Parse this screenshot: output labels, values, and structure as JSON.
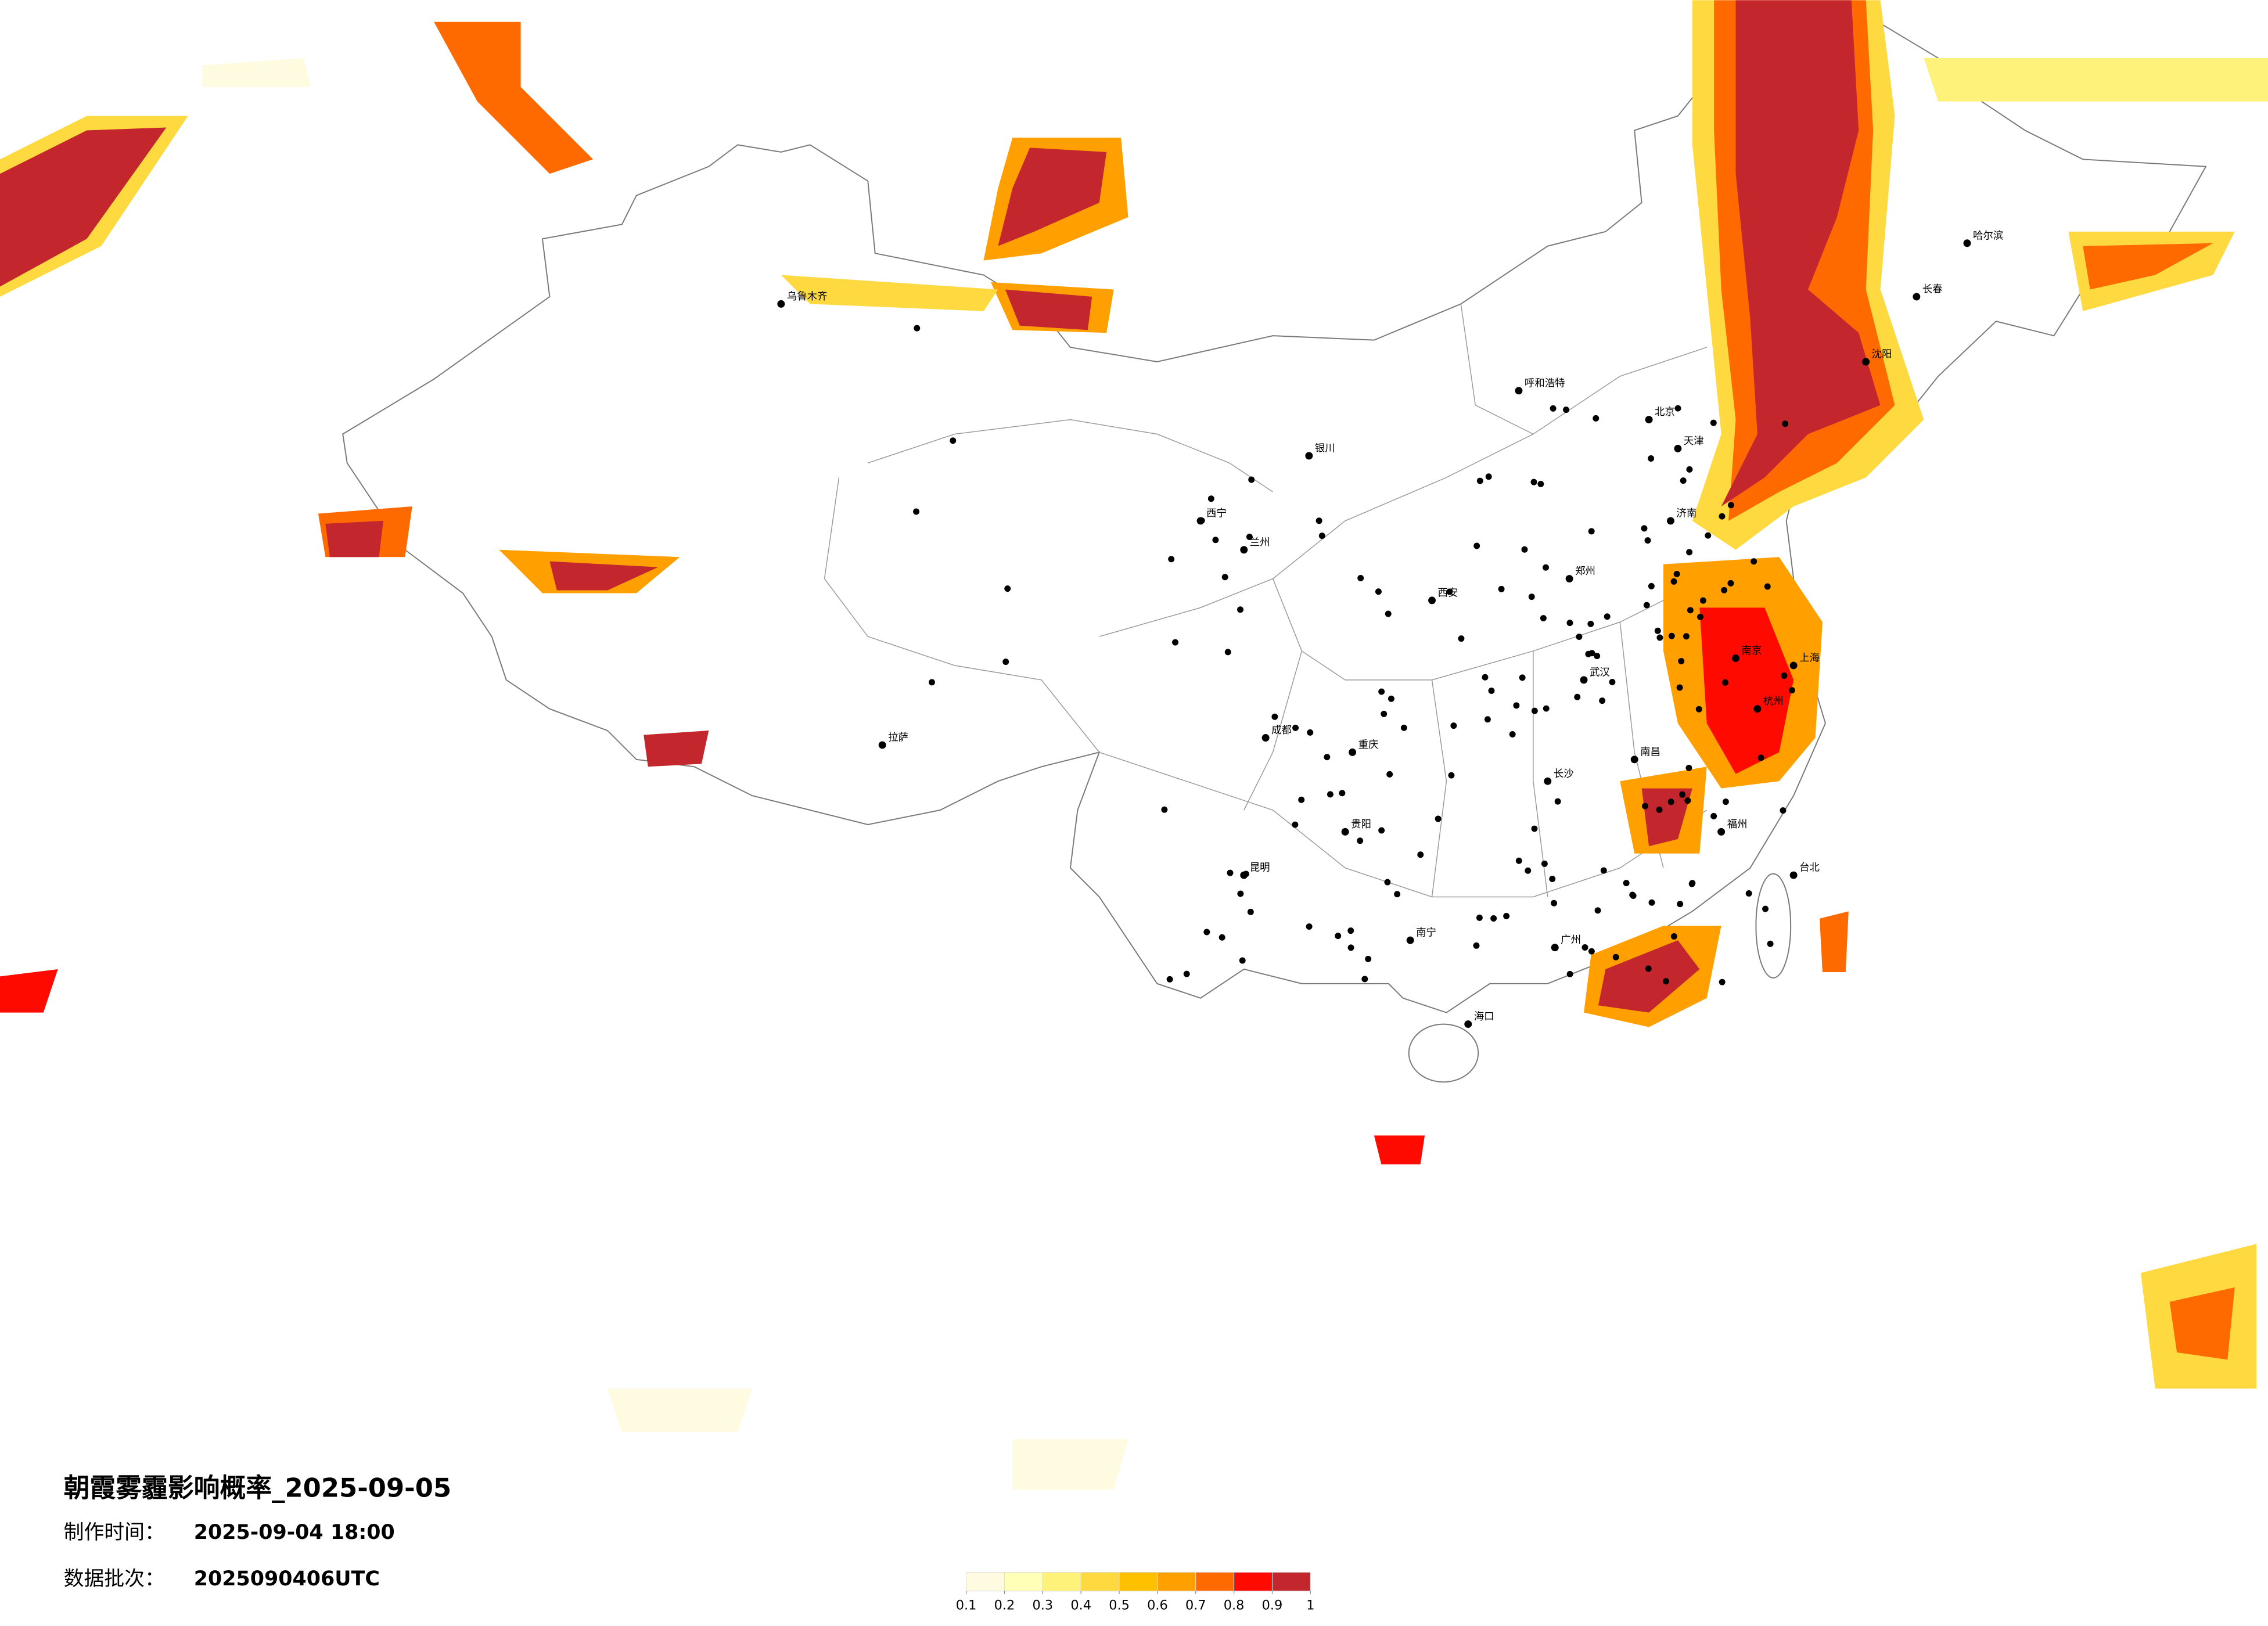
{
  "map": {
    "title": "朝霞雾霾影响概率_2025-09-05",
    "production_time_label": "制作时间：",
    "production_time": "2025-09-04 18:00",
    "batch_label": "数据批次：",
    "batch": "2025090406UTC",
    "legend": {
      "ticks": [
        0.1,
        0.2,
        0.3,
        0.4,
        0.5,
        0.6,
        0.7,
        0.8,
        0.9,
        1
      ],
      "colors": [
        "#fffbe0",
        "#ffffb8",
        "#fff27a",
        "#ffd940",
        "#ffc000",
        "#ffa000",
        "#ff6a00",
        "#ff0a00",
        "#c4262e"
      ]
    },
    "cities": [
      "哈尔滨",
      "长春",
      "沈阳",
      "北京",
      "天津",
      "济南",
      "郑州",
      "西安",
      "武汉",
      "南京",
      "上海",
      "杭州",
      "长沙",
      "南昌",
      "福州",
      "广州",
      "南宁",
      "昆明",
      "贵阳",
      "成都",
      "重庆",
      "兰州",
      "西宁",
      "银川",
      "呼和浩特",
      "拉萨",
      "乌鲁木齐",
      "海口",
      "台北"
    ]
  }
}
